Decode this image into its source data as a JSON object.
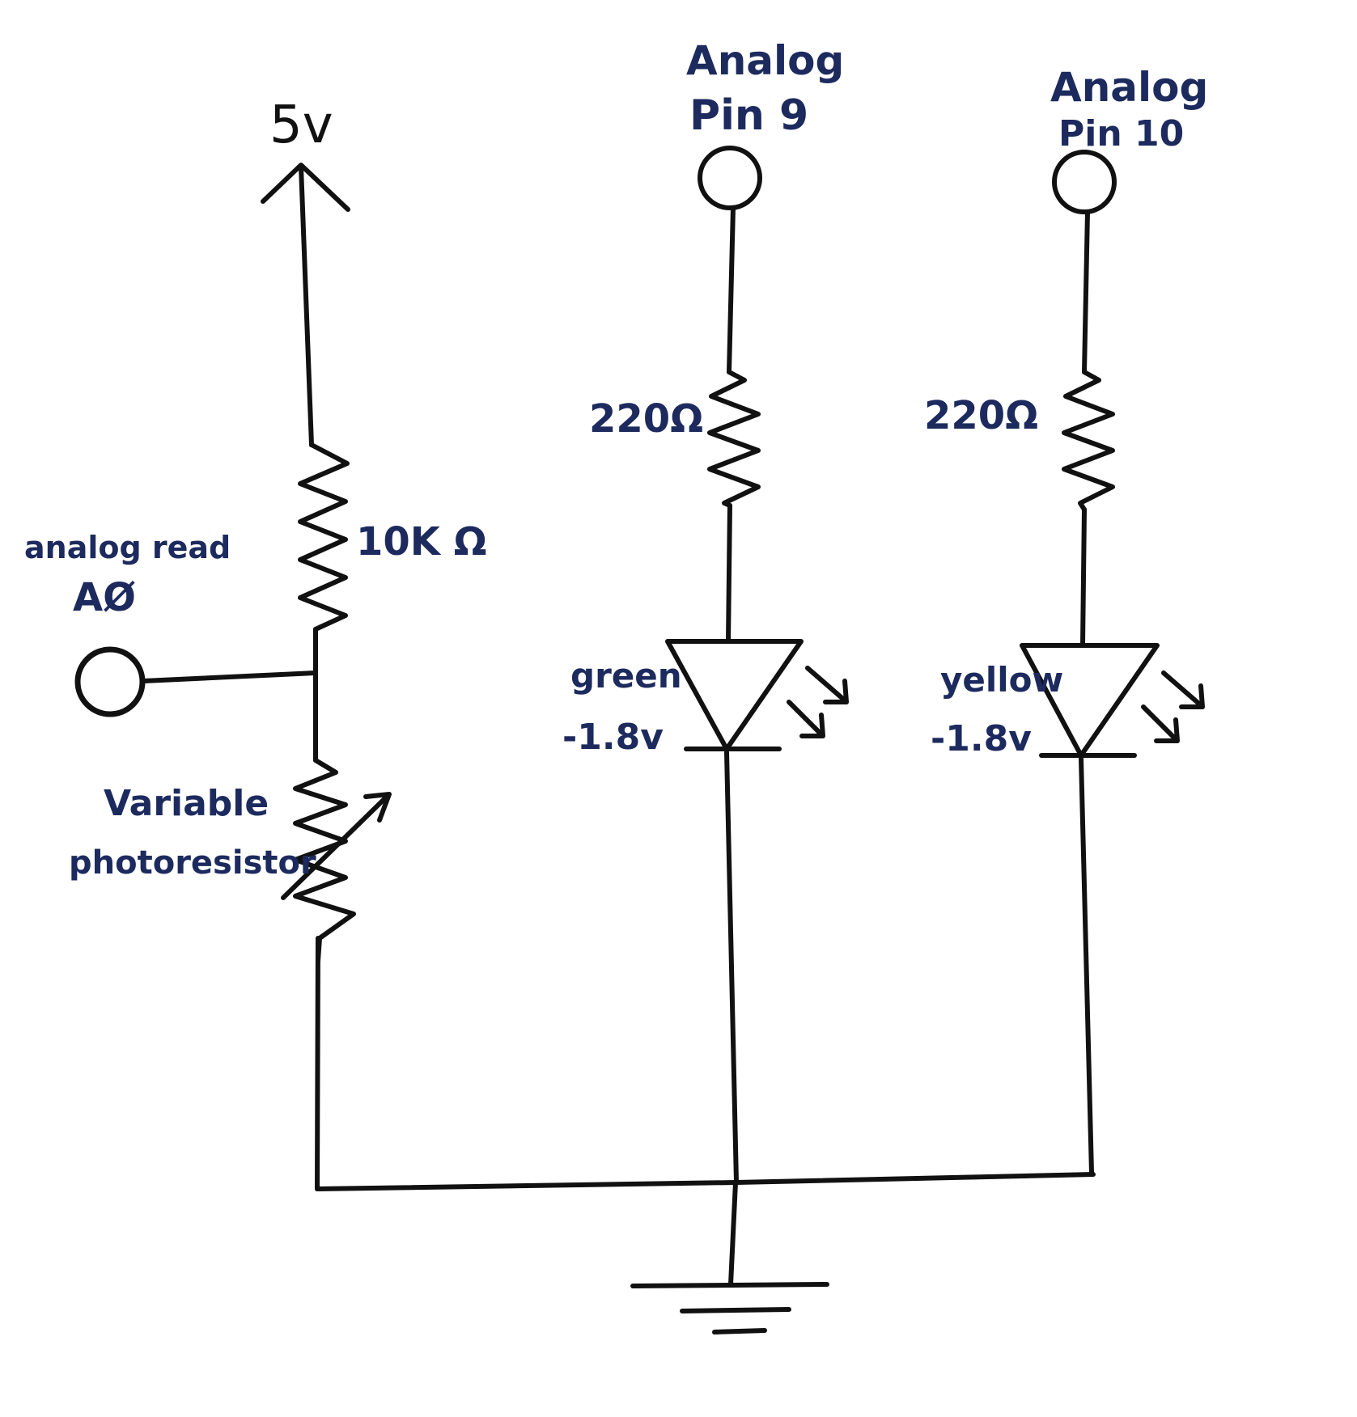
{
  "colors": {
    "ink": "#111111",
    "label": "#1c2a5e",
    "background": "#ffffff"
  },
  "labels": {
    "supply": "5v",
    "input_line1": "analog read",
    "input_line2": "AØ",
    "fixed_resistor": "10K Ω",
    "photoresistor_line1": "Variable",
    "photoresistor_line2": "photoresistor",
    "pin9_line1": "Analog",
    "pin9_line2": "Pin 9",
    "pin10_line1": "Analog",
    "pin10_line2": "Pin 10",
    "resistor_green": "220Ω",
    "resistor_yellow": "220Ω",
    "led_green_line1": "green",
    "led_green_line2": "-1.8v",
    "led_yellow_line1": "yellow",
    "led_yellow_line2": "-1.8v"
  },
  "icons": {
    "supply": "arrow-up-icon",
    "ground": "ground-icon",
    "emission": "light-emission-arrows-icon",
    "variable": "variable-arrow-icon"
  }
}
